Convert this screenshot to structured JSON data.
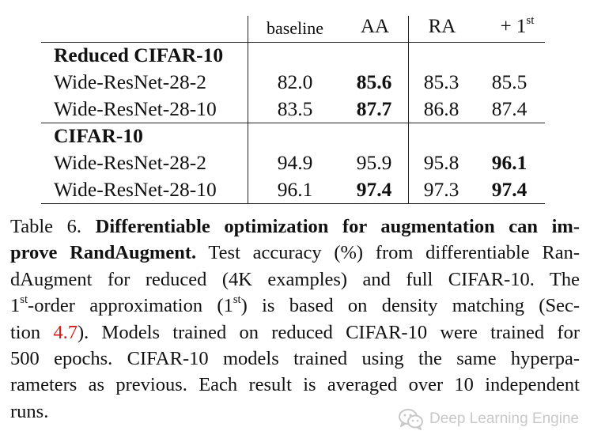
{
  "table": {
    "headers": [
      "baseline",
      "AA",
      "RA",
      "+ 1",
      "st"
    ],
    "sections": [
      {
        "title": "Reduced CIFAR-10",
        "rows": [
          {
            "model": "Wide-ResNet-28-2",
            "values": [
              "82.0",
              "85.6",
              "85.3",
              "85.5"
            ],
            "bold": [
              false,
              true,
              false,
              false
            ]
          },
          {
            "model": "Wide-ResNet-28-10",
            "values": [
              "83.5",
              "87.7",
              "86.8",
              "87.4"
            ],
            "bold": [
              false,
              true,
              false,
              false
            ]
          }
        ]
      },
      {
        "title": "CIFAR-10",
        "rows": [
          {
            "model": "Wide-ResNet-28-2",
            "values": [
              "94.9",
              "95.9",
              "95.8",
              "96.1"
            ],
            "bold": [
              false,
              false,
              false,
              true
            ]
          },
          {
            "model": "Wide-ResNet-28-10",
            "values": [
              "96.1",
              "97.4",
              "97.3",
              "97.4"
            ],
            "bold": [
              false,
              true,
              false,
              true
            ]
          }
        ]
      }
    ]
  },
  "caption": {
    "label": "Table 6.",
    "title_part1": "Differentiable optimization for augmentation can im-",
    "title_part2": "prove RandAugment.",
    "l2_rest": "Test accuracy (%) from differentiable Ran-",
    "l3": "dAugment for reduced (4K examples) and full CIFAR-10.  The",
    "l4_a": "1",
    "l4_sup1": "st",
    "l4_b": "-order approximation (1",
    "l4_sup2": "st",
    "l4_c": ") is based on density matching (Sec-",
    "l5_a": "tion",
    "l5_ref": "4.7",
    "l5_b": ").  Models trained on reduced CIFAR-10 were trained for",
    "l6": "500 epochs.  CIFAR-10 models trained using the same hyperpa-",
    "l7": "rameters as previous. Each result is averaged over 10 independent",
    "l8": "runs."
  },
  "watermark": {
    "text": "Deep Learning Engine",
    "icon": "wechat-icon"
  }
}
